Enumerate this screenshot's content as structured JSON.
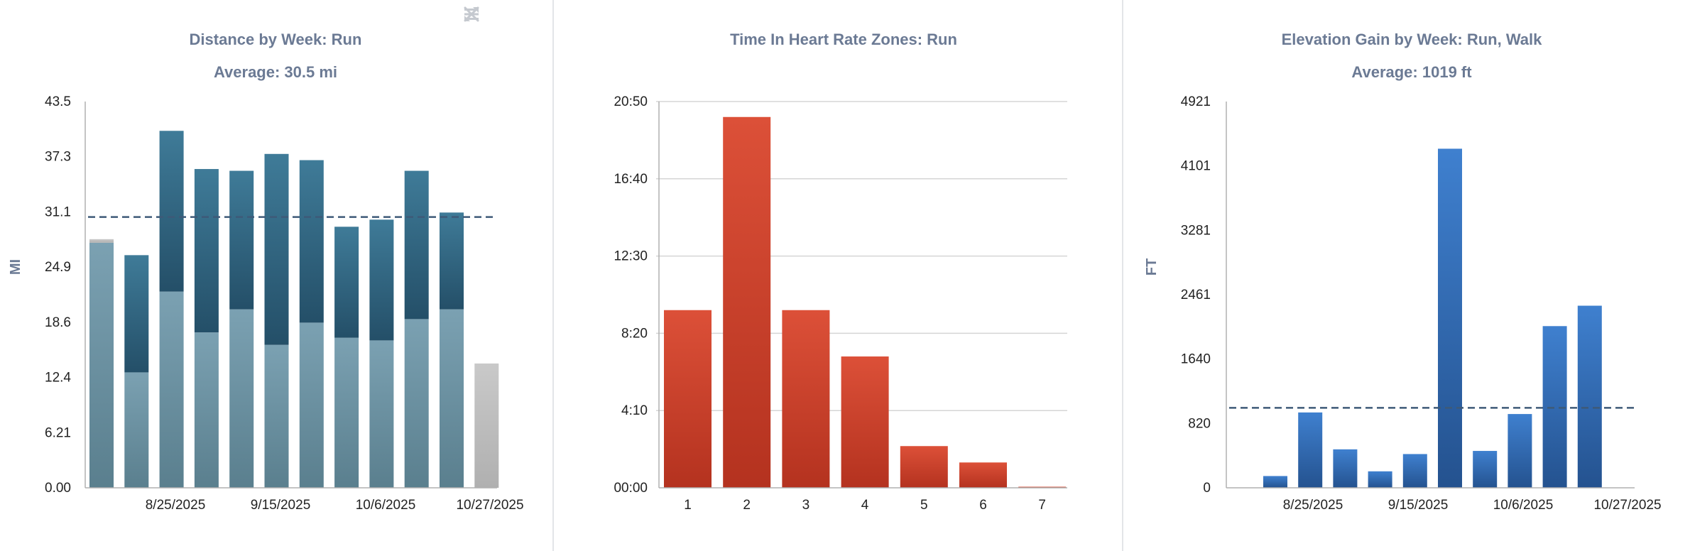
{
  "toolbar": {
    "icons": [
      "menu-icon",
      "expand-icon",
      "close-icon"
    ]
  },
  "colors": {
    "title": "#6b7a94",
    "axis_text": "#222222",
    "grid": "#d5d5d5",
    "avg_line": "#3e5a78",
    "divider": "#e3e5e8"
  },
  "chart_data": [
    {
      "type": "bar",
      "stacked": true,
      "title": "Distance by Week: Run",
      "subtitle": "Average: 30.5 mi",
      "ylabel": "MI",
      "xlabel": "",
      "ylim": [
        0,
        43.5
      ],
      "yticks": [
        "0.00",
        "6.21",
        "12.4",
        "18.6",
        "24.9",
        "31.1",
        "37.3",
        "43.5"
      ],
      "x_tick_labels": [
        "8/25/2025",
        "9/15/2025",
        "10/6/2025",
        "10/27/2025"
      ],
      "average": 30.5,
      "grid": false,
      "legend": "none",
      "series": [
        {
          "values": [
            27.6,
            13.0,
            22.1,
            17.5,
            20.1,
            16.1,
            18.6,
            16.9,
            16.6,
            19.0,
            20.1,
            0
          ]
        },
        {
          "values": [
            0,
            13.2,
            18.1,
            18.4,
            15.6,
            21.5,
            18.3,
            12.5,
            13.6,
            16.7,
            10.9,
            0
          ]
        },
        {
          "values": [
            0.4,
            0,
            0,
            0,
            0,
            0,
            0,
            0,
            0,
            0,
            0,
            14.0
          ]
        }
      ],
      "colors": {
        "lower": "#6d93a6",
        "upper": "#2f6584",
        "gray": "#bdbdbd"
      }
    },
    {
      "type": "bar",
      "title": "Time In Heart Rate Zones: Run",
      "xlabel": "",
      "ylabel": "",
      "categories": [
        "1",
        "2",
        "3",
        "4",
        "5",
        "6",
        "7"
      ],
      "values_minutes": [
        575,
        1200,
        575,
        425,
        135,
        82,
        3
      ],
      "ylim_minutes": [
        0,
        1250
      ],
      "yticks": [
        "00:00",
        "4:10",
        "8:20",
        "12:30",
        "16:40",
        "20:50"
      ],
      "grid": true,
      "legend": "none",
      "color": "#d44a35"
    },
    {
      "type": "bar",
      "title": "Elevation Gain by Week: Run, Walk",
      "subtitle": "Average: 1019 ft",
      "ylabel": "FT",
      "xlabel": "",
      "ylim": [
        0,
        4921
      ],
      "yticks": [
        "0",
        "820",
        "1640",
        "2461",
        "3281",
        "4101",
        "4921"
      ],
      "x_tick_labels": [
        "8/25/2025",
        "9/15/2025",
        "10/6/2025",
        "10/27/2025"
      ],
      "average": 1019,
      "grid": false,
      "legend": "none",
      "values": [
        150,
        960,
        490,
        210,
        430,
        4320,
        470,
        940,
        2060,
        2320
      ],
      "color": "#3a76c2"
    }
  ]
}
